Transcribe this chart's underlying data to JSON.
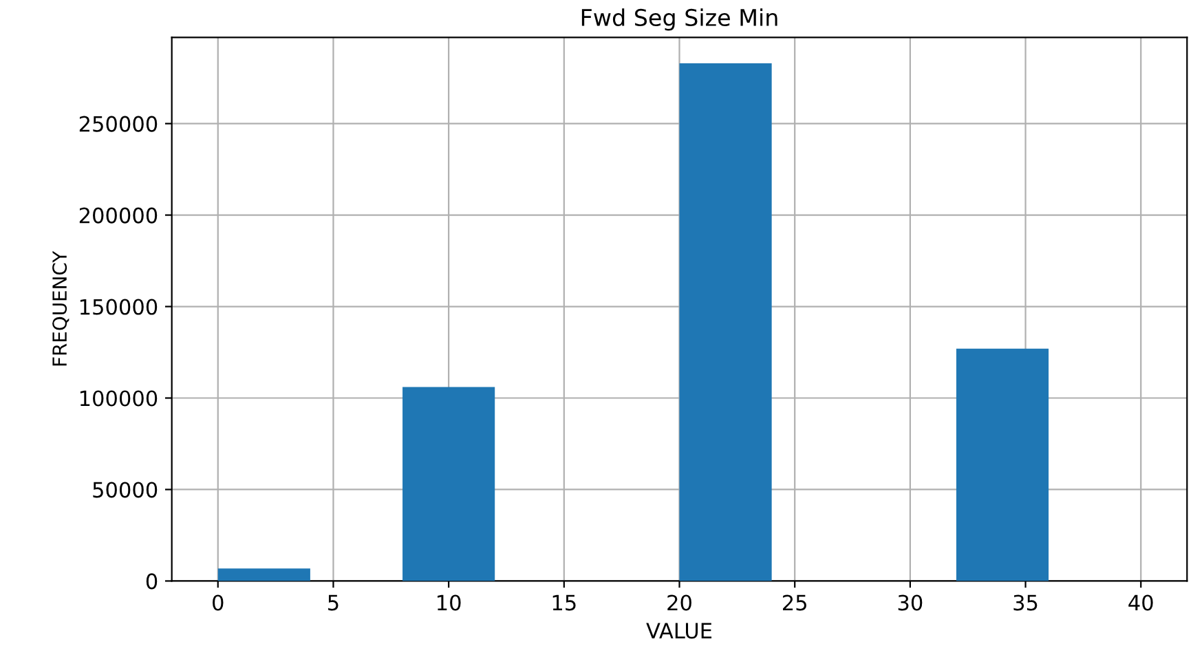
{
  "chart_data": {
    "type": "histogram",
    "title": "Fwd Seg Size Min",
    "xlabel": "VALUE",
    "ylabel": "FREQUENCY",
    "bins": [
      0,
      4,
      8,
      12,
      16,
      20,
      24,
      28,
      32,
      36,
      40
    ],
    "values": [
      6800,
      0,
      106000,
      0,
      0,
      283000,
      0,
      0,
      127000,
      0
    ],
    "color": "#1f77b4",
    "xlim": [
      -2,
      42
    ],
    "xticks": [
      0,
      5,
      10,
      15,
      20,
      25,
      30,
      35,
      40
    ],
    "ylim": [
      0,
      297150
    ],
    "yticks": [
      0,
      50000,
      100000,
      150000,
      200000,
      250000
    ],
    "grid": true
  }
}
